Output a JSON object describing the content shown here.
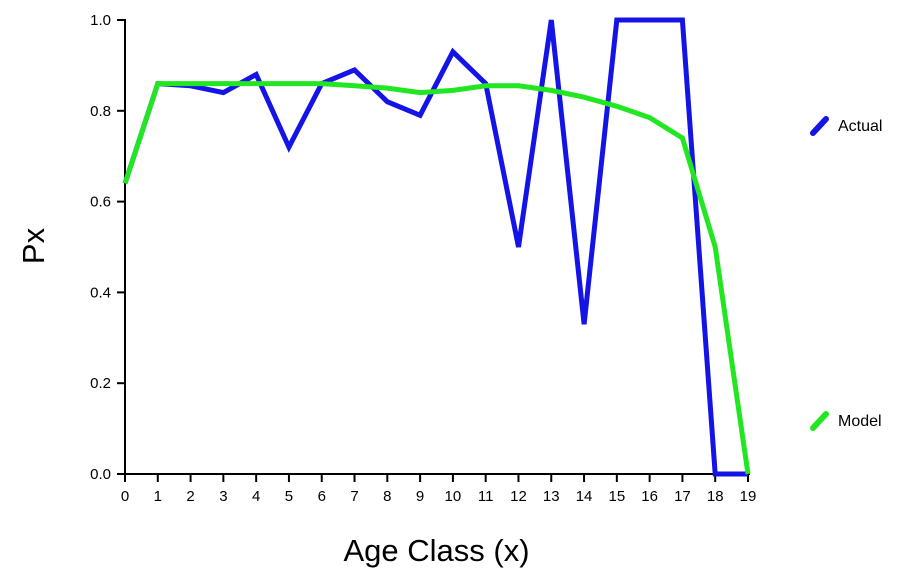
{
  "chart_data": {
    "type": "line",
    "xlabel": "Age Class (x)",
    "ylabel": "Px",
    "x": [
      0,
      1,
      2,
      3,
      4,
      5,
      6,
      7,
      8,
      9,
      10,
      11,
      12,
      13,
      14,
      15,
      16,
      17,
      18,
      19
    ],
    "x_tick_labels": [
      "0",
      "1",
      "2",
      "3",
      "4",
      "5",
      "6",
      "7",
      "8",
      "9",
      "10",
      "11",
      "12",
      "13",
      "14",
      "15",
      "16",
      "17",
      "18",
      "19"
    ],
    "y_tick_labels": [
      "0.0",
      "0.2",
      "0.4",
      "0.6",
      "0.8",
      "1.0"
    ],
    "y_ticks": [
      0,
      0.2,
      0.4,
      0.6,
      0.8,
      1.0
    ],
    "xlim": [
      0,
      19
    ],
    "ylim": [
      0,
      1.0
    ],
    "grid": false,
    "legend_position": "right",
    "series": [
      {
        "name": "Actual",
        "color": "#1414e6",
        "values": [
          0.64,
          0.86,
          0.855,
          0.84,
          0.88,
          0.72,
          0.86,
          0.89,
          0.82,
          0.79,
          0.93,
          0.86,
          0.5,
          1.0,
          0.33,
          1.0,
          1.0,
          1.0,
          0.0,
          0.0
        ]
      },
      {
        "name": "Model",
        "color": "#22e622",
        "values": [
          0.64,
          0.86,
          0.86,
          0.86,
          0.86,
          0.86,
          0.86,
          0.855,
          0.85,
          0.84,
          0.845,
          0.855,
          0.855,
          0.845,
          0.83,
          0.81,
          0.785,
          0.74,
          0.5,
          0.0
        ]
      }
    ]
  }
}
